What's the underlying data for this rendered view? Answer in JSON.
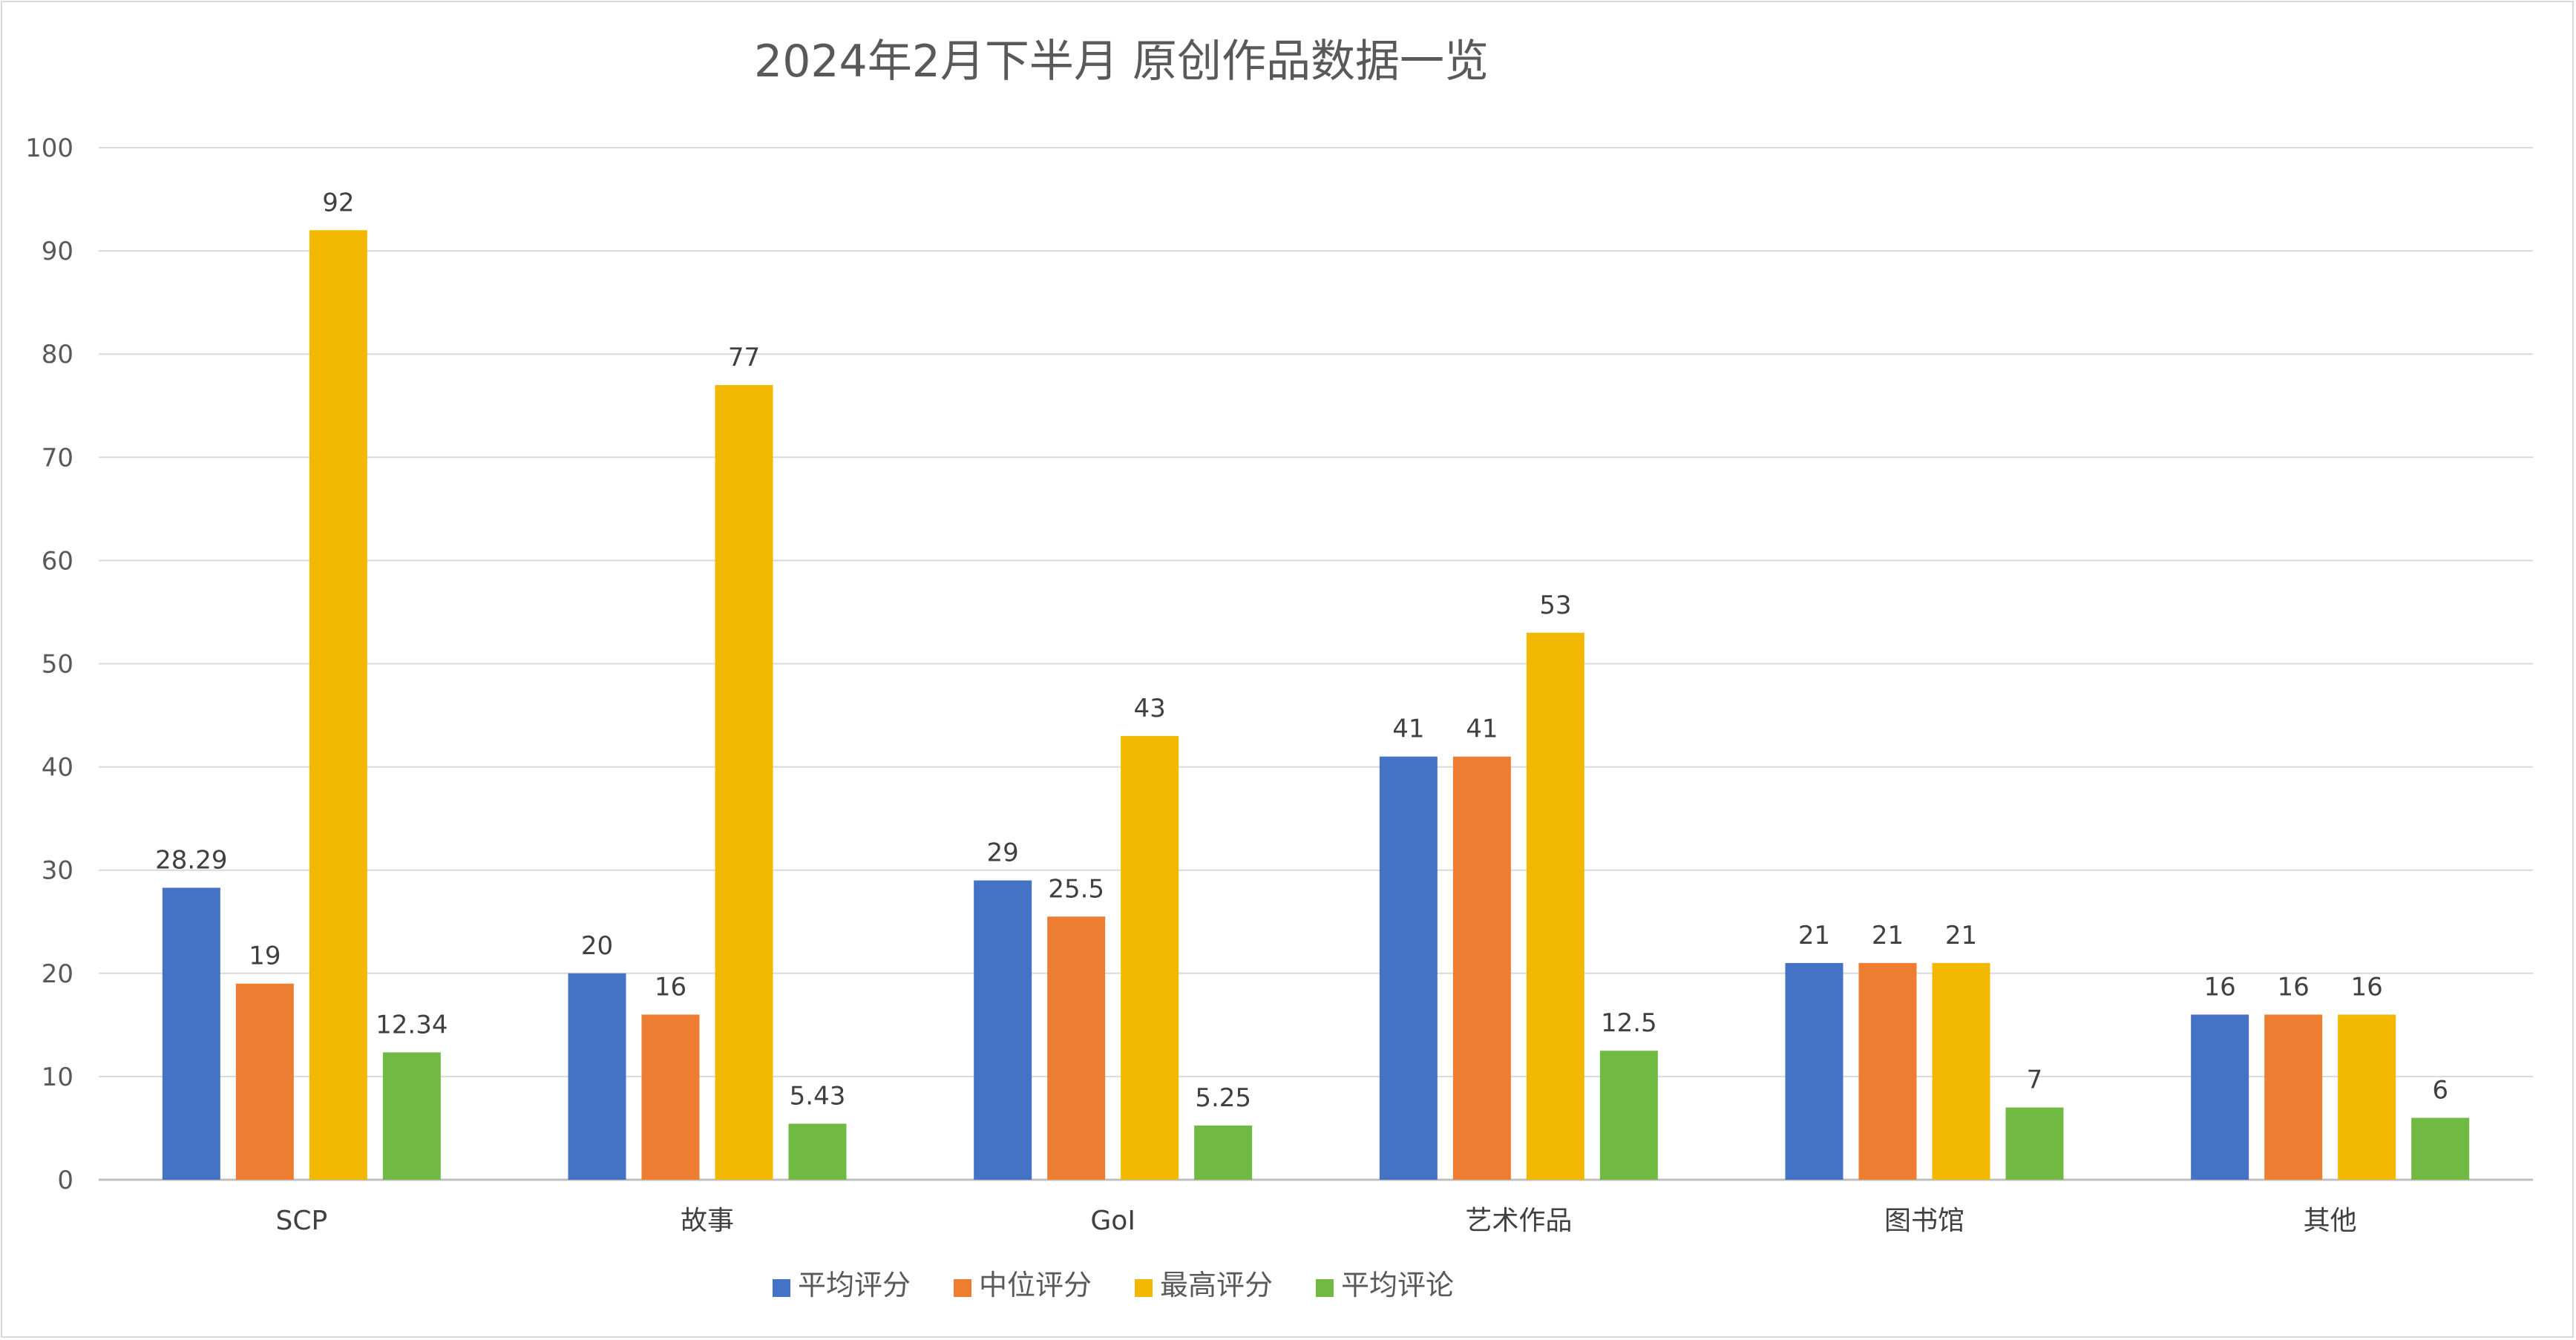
{
  "chart_data": {
    "type": "bar",
    "title": "2024年2月下半月 原创作品数据一览",
    "categories": [
      "SCP",
      "故事",
      "GoI",
      "艺术作品",
      "图书馆",
      "其他"
    ],
    "series": [
      {
        "name": "平均评分",
        "color": "#4472c4",
        "values": [
          28.29,
          20,
          29,
          41,
          21,
          16
        ]
      },
      {
        "name": "中位评分",
        "color": "#ed7d31",
        "values": [
          19,
          16,
          25.5,
          41,
          21,
          16
        ]
      },
      {
        "name": "最高评分",
        "color": "#f2b800",
        "values": [
          92,
          77,
          43,
          53,
          21,
          16
        ]
      },
      {
        "name": "平均评论",
        "color": "#70b943",
        "values": [
          12.34,
          5.43,
          5.25,
          12.5,
          7,
          6
        ]
      }
    ],
    "ylim": [
      0,
      100
    ],
    "yticks": [
      0,
      10,
      20,
      30,
      40,
      50,
      60,
      70,
      80,
      90,
      100
    ],
    "grid": true,
    "legend": "bottom",
    "xlabel": "",
    "ylabel": ""
  }
}
